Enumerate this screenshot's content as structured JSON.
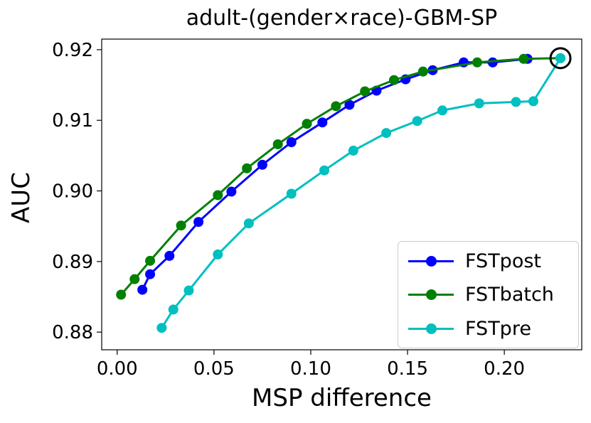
{
  "chart_data": {
    "type": "line",
    "title": "adult-(gender×race)-GBM-SP",
    "xlabel": "MSP difference",
    "ylabel": "AUC",
    "xlim": [
      -0.008,
      0.24
    ],
    "ylim": [
      0.8775,
      0.9215
    ],
    "xticks": [
      0.0,
      0.05,
      0.1,
      0.15,
      0.2
    ],
    "xtick_labels": [
      "0.00",
      "0.05",
      "0.10",
      "0.15",
      "0.20"
    ],
    "yticks": [
      0.88,
      0.89,
      0.9,
      0.91,
      0.92
    ],
    "ytick_labels": [
      "0.88",
      "0.89",
      "0.90",
      "0.91",
      "0.92"
    ],
    "grid": false,
    "legend_position": "bottom-right",
    "series": [
      {
        "name": "FSTpost",
        "color": "#0000ff",
        "x": [
          0.013,
          0.017,
          0.027,
          0.042,
          0.059,
          0.075,
          0.09,
          0.106,
          0.12,
          0.134,
          0.149,
          0.163,
          0.179,
          0.194,
          0.212
        ],
        "y": [
          0.886,
          0.8882,
          0.8908,
          0.8956,
          0.8999,
          0.9037,
          0.9069,
          0.9097,
          0.9122,
          0.9142,
          0.9158,
          0.9171,
          0.9182,
          0.9182,
          0.9187
        ]
      },
      {
        "name": "FSTbatch",
        "color": "#008000",
        "x": [
          0.002,
          0.009,
          0.017,
          0.033,
          0.052,
          0.067,
          0.083,
          0.098,
          0.113,
          0.128,
          0.143,
          0.158,
          0.186,
          0.21,
          0.229
        ],
        "y": [
          0.8853,
          0.8875,
          0.8901,
          0.8951,
          0.8994,
          0.9032,
          0.9066,
          0.9095,
          0.912,
          0.9141,
          0.9157,
          0.9169,
          0.9182,
          0.9187,
          0.9188
        ]
      },
      {
        "name": "FSTpre",
        "color": "#00bfbf",
        "x": [
          0.023,
          0.029,
          0.037,
          0.052,
          0.068,
          0.09,
          0.107,
          0.122,
          0.139,
          0.155,
          0.168,
          0.187,
          0.206,
          0.215,
          0.229
        ],
        "y": [
          0.8806,
          0.8832,
          0.8859,
          0.891,
          0.8954,
          0.8996,
          0.9029,
          0.9057,
          0.9082,
          0.9099,
          0.9114,
          0.9124,
          0.9126,
          0.9127,
          0.9188
        ]
      }
    ],
    "annotations": [
      {
        "type": "circle",
        "x": 0.229,
        "y": 0.9188,
        "color": "#000000"
      }
    ]
  }
}
